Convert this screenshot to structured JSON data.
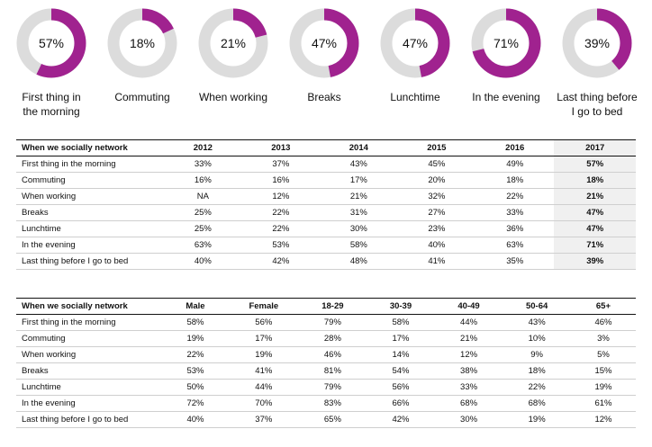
{
  "colors": {
    "accent": "#a0228f",
    "track": "#dcdcdc",
    "highlight": "#f0f0f0"
  },
  "chart_data": [
    {
      "type": "pie",
      "variant": "donut",
      "categories": [
        "First thing in the morning",
        "Commuting",
        "When working",
        "Breaks",
        "Lunchtime",
        "In the evening",
        "Last thing before I go to bed"
      ],
      "values": [
        57,
        18,
        21,
        47,
        47,
        71,
        39
      ],
      "labels": [
        "57%",
        "18%",
        "21%",
        "47%",
        "47%",
        "71%",
        "39%"
      ],
      "captions": [
        [
          "First thing in",
          "the morning"
        ],
        [
          "Commuting"
        ],
        [
          "When working"
        ],
        [
          "Breaks"
        ],
        [
          "Lunchtime"
        ],
        [
          "In the evening"
        ],
        [
          "Last thing before",
          "I go to bed"
        ]
      ]
    },
    {
      "type": "table",
      "header": [
        "When we socially network",
        "2012",
        "2013",
        "2014",
        "2015",
        "2016",
        "2017"
      ],
      "highlight_column": 6,
      "rows": [
        [
          "First thing in the morning",
          "33%",
          "37%",
          "43%",
          "45%",
          "49%",
          "57%"
        ],
        [
          "Commuting",
          "16%",
          "16%",
          "17%",
          "20%",
          "18%",
          "18%"
        ],
        [
          "When working",
          "NA",
          "12%",
          "21%",
          "32%",
          "22%",
          "21%"
        ],
        [
          "Breaks",
          "25%",
          "22%",
          "31%",
          "27%",
          "33%",
          "47%"
        ],
        [
          "Lunchtime",
          "25%",
          "22%",
          "30%",
          "23%",
          "36%",
          "47%"
        ],
        [
          "In the evening",
          "63%",
          "53%",
          "58%",
          "40%",
          "63%",
          "71%"
        ],
        [
          "Last thing before I go to bed",
          "40%",
          "42%",
          "48%",
          "41%",
          "35%",
          "39%"
        ]
      ]
    },
    {
      "type": "table",
      "header": [
        "When we socially network",
        "Male",
        "Female",
        "18-29",
        "30-39",
        "40-49",
        "50-64",
        "65+"
      ],
      "rows": [
        [
          "First thing in the morning",
          "58%",
          "56%",
          "79%",
          "58%",
          "44%",
          "43%",
          "46%"
        ],
        [
          "Commuting",
          "19%",
          "17%",
          "28%",
          "17%",
          "21%",
          "10%",
          "3%"
        ],
        [
          "When working",
          "22%",
          "19%",
          "46%",
          "14%",
          "12%",
          "9%",
          "5%"
        ],
        [
          "Breaks",
          "53%",
          "41%",
          "81%",
          "54%",
          "38%",
          "18%",
          "15%"
        ],
        [
          "Lunchtime",
          "50%",
          "44%",
          "79%",
          "56%",
          "33%",
          "22%",
          "19%"
        ],
        [
          "In the evening",
          "72%",
          "70%",
          "83%",
          "66%",
          "68%",
          "68%",
          "61%"
        ],
        [
          "Last thing before I go to bed",
          "40%",
          "37%",
          "65%",
          "42%",
          "30%",
          "19%",
          "12%"
        ]
      ]
    }
  ]
}
